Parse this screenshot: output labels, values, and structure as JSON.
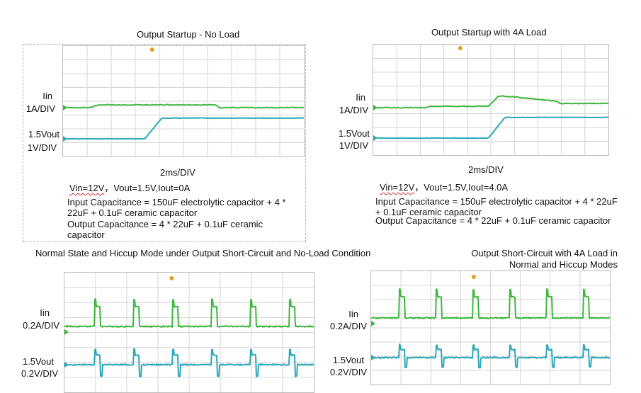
{
  "colors": {
    "current": "#3fb63f",
    "voltage": "#2aa8b8",
    "grid": "#d4d4d4",
    "marker": "#e0a020"
  },
  "panels": [
    {
      "title": "Output Startup - No Load",
      "ch1": {
        "name": "Iin",
        "scale": "1A/DIV"
      },
      "ch2": {
        "name": "1.5Vout",
        "scale": "1V/DIV"
      },
      "timebase": "2ms/DIV",
      "cond_vin": "Vin=12V",
      "cond_rest": "，Vout=1.5V,Iout=0A",
      "input_cap": "Input Capacitance = 150uF electrolytic capacitor + 4 * 22uF + 0.1uF ceramic capacitor",
      "output_cap": "Output Capacitance = 4 * 22uF + 0.1uF ceramic capacitor"
    },
    {
      "title": "Output Startup with 4A Load",
      "ch1": {
        "name": "Iin",
        "scale": "1A/DIV"
      },
      "ch2": {
        "name": "1.5Vout",
        "scale": "1V/DIV"
      },
      "timebase": "2ms/DIV",
      "cond_vin": "Vin=12V",
      "cond_rest": "，Vout=1.5V,Iout=4.0A",
      "input_cap": "Input Capacitance = 150uF electrolytic capacitor + 4 * 22uF + 0.1uF ceramic capacitor",
      "output_cap": "Output Capacitance = 4 * 22uF + 0.1uF ceramic capacitor"
    },
    {
      "title": "Normal State and Hiccup Mode under Output Short-Circuit and No-Load Condition",
      "ch1": {
        "name": "Iin",
        "scale": "0.2A/DIV"
      },
      "ch2": {
        "name": "1.5Vout",
        "scale": "0.2V/DIV"
      }
    },
    {
      "title_line1": "Output Short-Circuit with 4A Load in",
      "title_line2": "Normal and Hiccup Modes",
      "ch1": {
        "name": "Iin",
        "scale": "0.2A/DIV"
      },
      "ch2": {
        "name": "1.5Vout",
        "scale": "0.2V/DIV"
      }
    }
  ],
  "chart_data": [
    {
      "type": "line",
      "title": "Output Startup - No Load",
      "xlabel": "2ms/DIV",
      "x_divisions": 10,
      "xlim": [
        0,
        20
      ],
      "series": [
        {
          "name": "Iin",
          "scale": "1A/DIV",
          "x": [
            0,
            2.2,
            3.0,
            12.6,
            13.0,
            20
          ],
          "values": [
            0,
            0,
            0.2,
            0.2,
            0,
            0
          ]
        },
        {
          "name": "1.5Vout",
          "scale": "1V/DIV",
          "x": [
            0,
            6.8,
            8.2,
            20
          ],
          "values": [
            0,
            0,
            1.5,
            1.5
          ]
        }
      ]
    },
    {
      "type": "line",
      "title": "Output Startup with 4A Load",
      "xlabel": "2ms/DIV",
      "x_divisions": 10,
      "xlim": [
        0,
        20
      ],
      "series": [
        {
          "name": "Iin",
          "scale": "1A/DIV",
          "x": [
            0,
            4.5,
            5.0,
            9.8,
            10.6,
            11.0,
            15.5,
            15.9,
            20
          ],
          "values": [
            0,
            0,
            0.1,
            0.1,
            0.8,
            0.85,
            0.48,
            0.3,
            0.3
          ]
        },
        {
          "name": "1.5Vout",
          "scale": "1V/DIV",
          "x": [
            0,
            9.8,
            11.2,
            20
          ],
          "values": [
            0,
            0,
            1.5,
            1.5
          ]
        }
      ]
    },
    {
      "type": "line",
      "title": "Normal State and Hiccup Mode under Output Short-Circuit and No-Load Condition",
      "series": [
        {
          "name": "Iin",
          "scale": "0.2A/DIV"
        },
        {
          "name": "1.5Vout",
          "scale": "0.2V/DIV"
        }
      ]
    },
    {
      "type": "line",
      "title": "Output Short-Circuit with 4A Load in Normal and Hiccup Modes",
      "series": [
        {
          "name": "Iin",
          "scale": "0.2A/DIV"
        },
        {
          "name": "1.5Vout",
          "scale": "0.2V/DIV"
        }
      ]
    }
  ]
}
